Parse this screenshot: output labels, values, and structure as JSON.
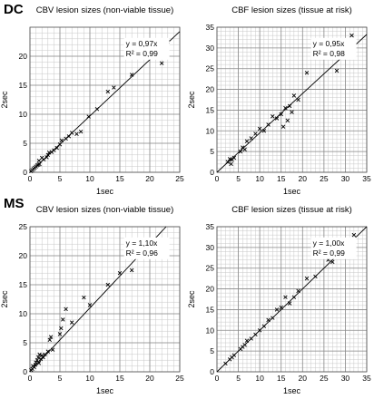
{
  "row_labels": [
    "DC",
    "MS"
  ],
  "chart_data": [
    {
      "type": "scatter",
      "title": "CBV lesion sizes (non-viable tissue)",
      "xlabel": "1sec",
      "ylabel": "2sec",
      "xlim": [
        0,
        25
      ],
      "ylim": [
        0,
        25
      ],
      "xticks": [
        0,
        5,
        10,
        15,
        20,
        25
      ],
      "yticks": [
        0,
        5,
        10,
        15,
        20
      ],
      "minor_step": 1,
      "grid": true,
      "fit_label": "y = 0,97x",
      "r2_label": "R² = 0,99",
      "fit_slope": 0.97,
      "points": [
        [
          0.2,
          0.2
        ],
        [
          0.4,
          0.4
        ],
        [
          0.6,
          0.6
        ],
        [
          0.8,
          0.8
        ],
        [
          1.0,
          1.0
        ],
        [
          1.2,
          1.2
        ],
        [
          1.4,
          1.3
        ],
        [
          1.6,
          1.4
        ],
        [
          1.5,
          2.0
        ],
        [
          2.0,
          2.5
        ],
        [
          2.3,
          2.2
        ],
        [
          2.8,
          2.6
        ],
        [
          3.0,
          3.0
        ],
        [
          3.2,
          3.4
        ],
        [
          3.6,
          3.5
        ],
        [
          4.0,
          3.8
        ],
        [
          4.5,
          4.2
        ],
        [
          5.0,
          4.8
        ],
        [
          5.3,
          5.5
        ],
        [
          6.0,
          5.8
        ],
        [
          6.5,
          6.2
        ],
        [
          7.0,
          6.8
        ],
        [
          7.8,
          6.6
        ],
        [
          8.5,
          7.0
        ],
        [
          9.8,
          9.6
        ],
        [
          11.2,
          10.9
        ],
        [
          13.0,
          13.9
        ],
        [
          14.0,
          14.6
        ],
        [
          17.0,
          16.8
        ],
        [
          19.0,
          21.0
        ],
        [
          20.0,
          19.8
        ],
        [
          22.0,
          18.8
        ],
        [
          23.0,
          22.5
        ]
      ]
    },
    {
      "type": "scatter",
      "title": "CBF lesion sizes (tissue at risk)",
      "xlabel": "1sec",
      "ylabel": "2sec",
      "xlim": [
        0,
        35
      ],
      "ylim": [
        0,
        35
      ],
      "xticks": [
        0,
        5,
        10,
        15,
        20,
        25,
        30,
        35
      ],
      "yticks": [
        0,
        5,
        10,
        15,
        20,
        25,
        30,
        35
      ],
      "minor_step": 1,
      "grid": true,
      "fit_label": "y = 0,95x",
      "r2_label": "R² = 0,98",
      "fit_slope": 0.95,
      "points": [
        [
          2.5,
          2.5
        ],
        [
          3.0,
          3.2
        ],
        [
          3.3,
          2.0
        ],
        [
          3.5,
          3.0
        ],
        [
          4.0,
          3.5
        ],
        [
          5.5,
          5.0
        ],
        [
          6.0,
          6.0
        ],
        [
          6.5,
          5.5
        ],
        [
          7.0,
          7.5
        ],
        [
          8.0,
          8.2
        ],
        [
          9.0,
          9.3
        ],
        [
          10.0,
          10.5
        ],
        [
          11.0,
          10.0
        ],
        [
          12.0,
          11.5
        ],
        [
          13.0,
          13.5
        ],
        [
          14.0,
          13.0
        ],
        [
          15.0,
          14.0
        ],
        [
          15.5,
          11.0
        ],
        [
          16.0,
          15.5
        ],
        [
          16.5,
          12.5
        ],
        [
          17.0,
          16.0
        ],
        [
          17.5,
          14.5
        ],
        [
          18.0,
          18.5
        ],
        [
          19.0,
          17.5
        ],
        [
          21.0,
          24.0
        ],
        [
          27.0,
          28.0
        ],
        [
          28.0,
          24.5
        ],
        [
          28.5,
          29.0
        ],
        [
          31.0,
          30.5
        ],
        [
          31.5,
          33.0
        ],
        [
          32.0,
          29.5
        ]
      ]
    },
    {
      "type": "scatter",
      "title": "CBV lesion sizes (non-viable tissue)",
      "xlabel": "1sec",
      "ylabel": "2sec",
      "xlim": [
        0,
        25
      ],
      "ylim": [
        0,
        25
      ],
      "xticks": [
        0,
        5,
        10,
        15,
        20,
        25
      ],
      "yticks": [
        0,
        5,
        10,
        15,
        20,
        25
      ],
      "minor_step": 1,
      "grid": true,
      "fit_label": "y = 1,10x",
      "r2_label": "R² = 0,96",
      "fit_slope": 1.1,
      "points": [
        [
          0.2,
          0.3
        ],
        [
          0.4,
          0.5
        ],
        [
          0.5,
          1.0
        ],
        [
          0.7,
          0.8
        ],
        [
          0.9,
          1.2
        ],
        [
          1.0,
          1.6
        ],
        [
          1.2,
          2.0
        ],
        [
          1.4,
          2.5
        ],
        [
          1.5,
          1.5
        ],
        [
          1.6,
          3.0
        ],
        [
          1.8,
          2.2
        ],
        [
          2.0,
          2.8
        ],
        [
          2.2,
          2.5
        ],
        [
          2.5,
          3.0
        ],
        [
          3.0,
          3.5
        ],
        [
          3.3,
          5.5
        ],
        [
          3.5,
          6.0
        ],
        [
          3.8,
          3.8
        ],
        [
          5.0,
          6.5
        ],
        [
          5.2,
          7.5
        ],
        [
          5.5,
          9.0
        ],
        [
          6.0,
          10.8
        ],
        [
          7.0,
          8.5
        ],
        [
          9.0,
          12.8
        ],
        [
          10.0,
          11.5
        ],
        [
          13.0,
          15.0
        ],
        [
          15.0,
          17.0
        ],
        [
          17.0,
          17.5
        ],
        [
          19.0,
          20.5
        ],
        [
          20.0,
          21.5
        ],
        [
          21.5,
          22.5
        ],
        [
          22.5,
          21.0
        ]
      ]
    },
    {
      "type": "scatter",
      "title": "CBF lesion sizes (tissue at risk)",
      "xlabel": "1sec",
      "ylabel": "2sec",
      "xlim": [
        0,
        35
      ],
      "ylim": [
        0,
        35
      ],
      "xticks": [
        0,
        5,
        10,
        15,
        20,
        25,
        30,
        35
      ],
      "yticks": [
        0,
        5,
        10,
        15,
        20,
        25,
        30,
        35
      ],
      "minor_step": 1,
      "grid": true,
      "fit_label": "y = 1,00x",
      "r2_label": "R² = 0,99",
      "fit_slope": 1.0,
      "points": [
        [
          2.0,
          2.0
        ],
        [
          3.0,
          3.0
        ],
        [
          3.5,
          3.5
        ],
        [
          4.0,
          4.0
        ],
        [
          5.5,
          5.5
        ],
        [
          6.0,
          6.0
        ],
        [
          6.5,
          6.5
        ],
        [
          7.0,
          7.5
        ],
        [
          8.0,
          8.0
        ],
        [
          9.0,
          9.0
        ],
        [
          10.0,
          10.0
        ],
        [
          11.0,
          11.0
        ],
        [
          12.0,
          12.5
        ],
        [
          13.0,
          13.0
        ],
        [
          14.0,
          15.0
        ],
        [
          15.0,
          15.5
        ],
        [
          16.0,
          18.0
        ],
        [
          17.0,
          16.5
        ],
        [
          18.0,
          18.0
        ],
        [
          19.0,
          19.5
        ],
        [
          21.0,
          22.5
        ],
        [
          23.0,
          23.0
        ],
        [
          26.0,
          27.0
        ],
        [
          27.0,
          26.5
        ],
        [
          29.0,
          30.0
        ],
        [
          30.0,
          29.5
        ],
        [
          31.0,
          31.0
        ],
        [
          32.0,
          33.0
        ]
      ]
    }
  ]
}
